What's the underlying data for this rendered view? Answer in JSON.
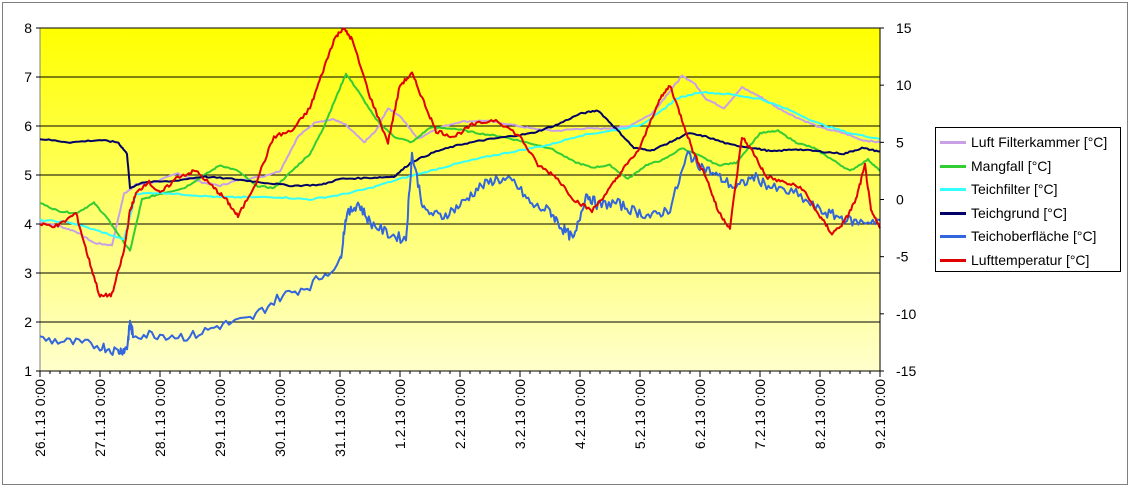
{
  "chart_data": {
    "type": "line",
    "title": "",
    "x_ticks": [
      "26.1.13 0:00",
      "27.1.13 0:00",
      "28.1.13 0:00",
      "29.1.13 0:00",
      "30.1.13 0:00",
      "31.1.13 0:00",
      "1.2.13 0:00",
      "2.2.13 0:00",
      "3.2.13 0:00",
      "4.2.13 0:00",
      "5.2.13 0:00",
      "6.2.13 0:00",
      "7.2.13 0:00",
      "8.2.13 0:00",
      "9.2.13 0:00"
    ],
    "xlim_days": [
      0,
      14
    ],
    "y_left": {
      "lim": [
        1,
        8
      ],
      "ticks": [
        1,
        2,
        3,
        4,
        5,
        6,
        7,
        8
      ]
    },
    "y_right": {
      "lim": [
        -15,
        15
      ],
      "ticks": [
        15,
        10,
        5,
        0,
        -5,
        -10,
        -15
      ]
    },
    "grid": "horizontal",
    "legend_position": "right",
    "colors": {
      "plot_top": "#ffff00",
      "plot_bottom": "#ffffcc",
      "grid": "#000000"
    },
    "series": [
      {
        "name": "Luft Filterkammer [°C]",
        "color": "#c8a0e6",
        "axis": "right",
        "points": [
          [
            0,
            -2
          ],
          [
            0.3,
            -2.3
          ],
          [
            0.6,
            -2.8
          ],
          [
            0.9,
            -3.8
          ],
          [
            1.2,
            -4.0
          ],
          [
            1.4,
            0.5
          ],
          [
            1.6,
            1.3
          ],
          [
            1.9,
            1.5
          ],
          [
            2.3,
            2.3
          ],
          [
            2.7,
            1.5
          ],
          [
            3.0,
            1.2
          ],
          [
            3.3,
            1.7
          ],
          [
            3.7,
            2.0
          ],
          [
            4.0,
            2.5
          ],
          [
            4.3,
            5.5
          ],
          [
            4.6,
            6.8
          ],
          [
            4.9,
            7.0
          ],
          [
            5.1,
            6.5
          ],
          [
            5.4,
            5.0
          ],
          [
            5.6,
            6.0
          ],
          [
            5.8,
            8.0
          ],
          [
            6.0,
            7.3
          ],
          [
            6.3,
            5.3
          ],
          [
            6.6,
            6.2
          ],
          [
            7.0,
            6.8
          ],
          [
            7.4,
            6.9
          ],
          [
            7.8,
            6.6
          ],
          [
            8.2,
            6.2
          ],
          [
            8.6,
            6.0
          ],
          [
            9.0,
            6.2
          ],
          [
            9.4,
            6.2
          ],
          [
            9.8,
            6.4
          ],
          [
            10.2,
            7.5
          ],
          [
            10.5,
            9.5
          ],
          [
            10.7,
            10.8
          ],
          [
            10.9,
            10.2
          ],
          [
            11.1,
            8.8
          ],
          [
            11.4,
            8.0
          ],
          [
            11.7,
            9.8
          ],
          [
            12.0,
            9.0
          ],
          [
            12.3,
            8.0
          ],
          [
            12.6,
            7.2
          ],
          [
            13.0,
            6.3
          ],
          [
            13.4,
            5.8
          ],
          [
            13.7,
            5.2
          ],
          [
            14,
            5.0
          ]
        ]
      },
      {
        "name": "Mangfall [°C]",
        "color": "#33cc33",
        "axis": "right",
        "points": [
          [
            0,
            -0.3
          ],
          [
            0.3,
            -1.0
          ],
          [
            0.6,
            -1.2
          ],
          [
            0.9,
            -0.3
          ],
          [
            1.1,
            -1.5
          ],
          [
            1.3,
            -3.0
          ],
          [
            1.5,
            -4.5
          ],
          [
            1.7,
            0
          ],
          [
            2.0,
            0.5
          ],
          [
            2.4,
            1.0
          ],
          [
            2.7,
            2.0
          ],
          [
            3.0,
            3.0
          ],
          [
            3.3,
            2.5
          ],
          [
            3.6,
            1.2
          ],
          [
            3.9,
            1.0
          ],
          [
            4.2,
            2.5
          ],
          [
            4.5,
            4.0
          ],
          [
            4.7,
            6.0
          ],
          [
            4.9,
            8.5
          ],
          [
            5.1,
            11.0
          ],
          [
            5.3,
            9.5
          ],
          [
            5.6,
            7.0
          ],
          [
            5.9,
            5.5
          ],
          [
            6.2,
            5.0
          ],
          [
            6.5,
            6.3
          ],
          [
            6.9,
            6.2
          ],
          [
            7.3,
            5.8
          ],
          [
            7.7,
            5.5
          ],
          [
            8.1,
            5.0
          ],
          [
            8.5,
            4.5
          ],
          [
            8.9,
            3.3
          ],
          [
            9.2,
            2.8
          ],
          [
            9.5,
            3.0
          ],
          [
            9.8,
            1.8
          ],
          [
            10.1,
            3.0
          ],
          [
            10.4,
            3.5
          ],
          [
            10.7,
            4.5
          ],
          [
            11.0,
            3.8
          ],
          [
            11.3,
            3.0
          ],
          [
            11.6,
            3.2
          ],
          [
            12.0,
            5.8
          ],
          [
            12.3,
            6.0
          ],
          [
            12.6,
            5.0
          ],
          [
            12.9,
            4.5
          ],
          [
            13.2,
            3.5
          ],
          [
            13.5,
            2.5
          ],
          [
            13.8,
            3.5
          ],
          [
            14,
            2.5
          ]
        ]
      },
      {
        "name": "Teichfilter [°C]",
        "color": "#33ffff",
        "axis": "right",
        "points": [
          [
            0,
            -1.8
          ],
          [
            0.5,
            -2.0
          ],
          [
            1.0,
            -2.8
          ],
          [
            1.4,
            -3.5
          ],
          [
            1.6,
            0.5
          ],
          [
            2.0,
            0.6
          ],
          [
            2.5,
            0.4
          ],
          [
            3.0,
            0.2
          ],
          [
            3.5,
            0.2
          ],
          [
            4.0,
            0.2
          ],
          [
            4.5,
            0.0
          ],
          [
            5.0,
            0.4
          ],
          [
            5.5,
            1.0
          ],
          [
            6.0,
            1.8
          ],
          [
            6.5,
            2.5
          ],
          [
            7.0,
            3.2
          ],
          [
            7.5,
            3.8
          ],
          [
            8.0,
            4.3
          ],
          [
            8.5,
            4.8
          ],
          [
            9.0,
            5.6
          ],
          [
            9.5,
            6.0
          ],
          [
            10.0,
            6.5
          ],
          [
            10.3,
            7.5
          ],
          [
            10.6,
            8.8
          ],
          [
            11.0,
            9.4
          ],
          [
            11.5,
            9.2
          ],
          [
            12.0,
            8.8
          ],
          [
            12.5,
            7.8
          ],
          [
            13.0,
            6.6
          ],
          [
            13.5,
            5.8
          ],
          [
            14,
            5.3
          ]
        ]
      },
      {
        "name": "Teichgrund [°C]",
        "color": "#000066",
        "axis": "right",
        "points": [
          [
            0,
            5.3
          ],
          [
            0.5,
            5.0
          ],
          [
            1.0,
            5.2
          ],
          [
            1.3,
            5.0
          ],
          [
            1.45,
            4.0
          ],
          [
            1.5,
            1.0
          ],
          [
            1.7,
            1.5
          ],
          [
            2.2,
            1.6
          ],
          [
            2.7,
            2.0
          ],
          [
            3.2,
            1.8
          ],
          [
            3.7,
            1.5
          ],
          [
            4.2,
            1.2
          ],
          [
            4.7,
            1.3
          ],
          [
            5.0,
            1.8
          ],
          [
            5.5,
            1.9
          ],
          [
            5.9,
            2.0
          ],
          [
            6.2,
            3.3
          ],
          [
            6.6,
            4.2
          ],
          [
            7.0,
            4.8
          ],
          [
            7.4,
            5.2
          ],
          [
            7.8,
            5.5
          ],
          [
            8.2,
            5.8
          ],
          [
            8.6,
            6.5
          ],
          [
            9.0,
            7.5
          ],
          [
            9.3,
            7.8
          ],
          [
            9.6,
            6.2
          ],
          [
            9.9,
            4.5
          ],
          [
            10.2,
            4.3
          ],
          [
            10.5,
            5.0
          ],
          [
            10.8,
            5.8
          ],
          [
            11.1,
            5.5
          ],
          [
            11.5,
            4.8
          ],
          [
            11.9,
            4.5
          ],
          [
            12.2,
            4.2
          ],
          [
            12.6,
            4.4
          ],
          [
            13.0,
            4.2
          ],
          [
            13.4,
            4.0
          ],
          [
            13.7,
            4.5
          ],
          [
            14,
            4.2
          ]
        ]
      },
      {
        "name": "Teichoberfläche [°C]",
        "color": "#3366dd",
        "axis": "right",
        "points": [
          [
            0,
            -12.2
          ],
          [
            0.5,
            -12.5
          ],
          [
            1.0,
            -12.8
          ],
          [
            1.3,
            -13.3
          ],
          [
            1.45,
            -13.0
          ],
          [
            1.5,
            -10.8
          ],
          [
            1.55,
            -11.8
          ],
          [
            2.0,
            -11.8
          ],
          [
            2.5,
            -12.0
          ],
          [
            3.0,
            -11.0
          ],
          [
            3.5,
            -10.5
          ],
          [
            4.0,
            -8.5
          ],
          [
            4.5,
            -7.5
          ],
          [
            5.0,
            -5.5
          ],
          [
            5.1,
            -1.5
          ],
          [
            5.3,
            -0.3
          ],
          [
            5.5,
            -2.0
          ],
          [
            5.8,
            -3.0
          ],
          [
            6.1,
            -3.5
          ],
          [
            6.2,
            4.0
          ],
          [
            6.4,
            -1.0
          ],
          [
            6.7,
            -1.5
          ],
          [
            7.0,
            -0.5
          ],
          [
            7.3,
            1.0
          ],
          [
            7.6,
            1.8
          ],
          [
            7.9,
            1.5
          ],
          [
            8.2,
            -0.5
          ],
          [
            8.5,
            -1.0
          ],
          [
            8.7,
            -2.5
          ],
          [
            8.9,
            -3.5
          ],
          [
            9.1,
            0.5
          ],
          [
            9.3,
            -0.5
          ],
          [
            9.6,
            -0.3
          ],
          [
            9.9,
            -1.0
          ],
          [
            10.2,
            -1.5
          ],
          [
            10.5,
            -0.8
          ],
          [
            10.8,
            4.0
          ],
          [
            11.0,
            3.0
          ],
          [
            11.3,
            2.0
          ],
          [
            11.6,
            1.0
          ],
          [
            11.9,
            2.0
          ],
          [
            12.2,
            1.0
          ],
          [
            12.6,
            0.5
          ],
          [
            13.0,
            -1.0
          ],
          [
            13.3,
            -1.5
          ],
          [
            13.6,
            -2.0
          ],
          [
            14,
            -1.8
          ]
        ]
      },
      {
        "name": "Lufttemperatur [°C]",
        "color": "#e00000",
        "axis": "right",
        "points": [
          [
            0,
            -2.2
          ],
          [
            0.3,
            -2.3
          ],
          [
            0.6,
            -1.2
          ],
          [
            0.8,
            -5.0
          ],
          [
            1.0,
            -8.5
          ],
          [
            1.2,
            -8.3
          ],
          [
            1.4,
            -4.5
          ],
          [
            1.5,
            -1.0
          ],
          [
            1.6,
            0.5
          ],
          [
            1.8,
            1.6
          ],
          [
            2.0,
            0.5
          ],
          [
            2.3,
            2.0
          ],
          [
            2.6,
            2.5
          ],
          [
            2.9,
            1.0
          ],
          [
            3.1,
            0.0
          ],
          [
            3.3,
            -1.5
          ],
          [
            3.6,
            1.5
          ],
          [
            3.9,
            5.5
          ],
          [
            4.2,
            6.0
          ],
          [
            4.5,
            8.0
          ],
          [
            4.7,
            11.0
          ],
          [
            4.9,
            14.0
          ],
          [
            5.05,
            15.0
          ],
          [
            5.2,
            14.0
          ],
          [
            5.5,
            9.0
          ],
          [
            5.8,
            5.0
          ],
          [
            6.0,
            10.0
          ],
          [
            6.2,
            11.0
          ],
          [
            6.4,
            8.5
          ],
          [
            6.6,
            6.0
          ],
          [
            6.9,
            5.5
          ],
          [
            7.2,
            6.5
          ],
          [
            7.6,
            7.0
          ],
          [
            8.0,
            5.5
          ],
          [
            8.3,
            3.0
          ],
          [
            8.6,
            2.0
          ],
          [
            8.9,
            0.0
          ],
          [
            9.2,
            -1.0
          ],
          [
            9.5,
            1.0
          ],
          [
            9.7,
            2.5
          ],
          [
            10.0,
            4.5
          ],
          [
            10.3,
            8.5
          ],
          [
            10.5,
            10.0
          ],
          [
            10.7,
            7.0
          ],
          [
            10.9,
            4.0
          ],
          [
            11.1,
            2.0
          ],
          [
            11.3,
            -1.0
          ],
          [
            11.5,
            -2.5
          ],
          [
            11.7,
            5.5
          ],
          [
            11.9,
            4.0
          ],
          [
            12.1,
            2.0
          ],
          [
            12.4,
            1.5
          ],
          [
            12.7,
            1.0
          ],
          [
            13.0,
            -1.5
          ],
          [
            13.2,
            -3.0
          ],
          [
            13.4,
            -2.0
          ],
          [
            13.6,
            0.0
          ],
          [
            13.75,
            3.0
          ],
          [
            13.85,
            -1.0
          ],
          [
            14,
            -2.5
          ]
        ]
      }
    ]
  }
}
